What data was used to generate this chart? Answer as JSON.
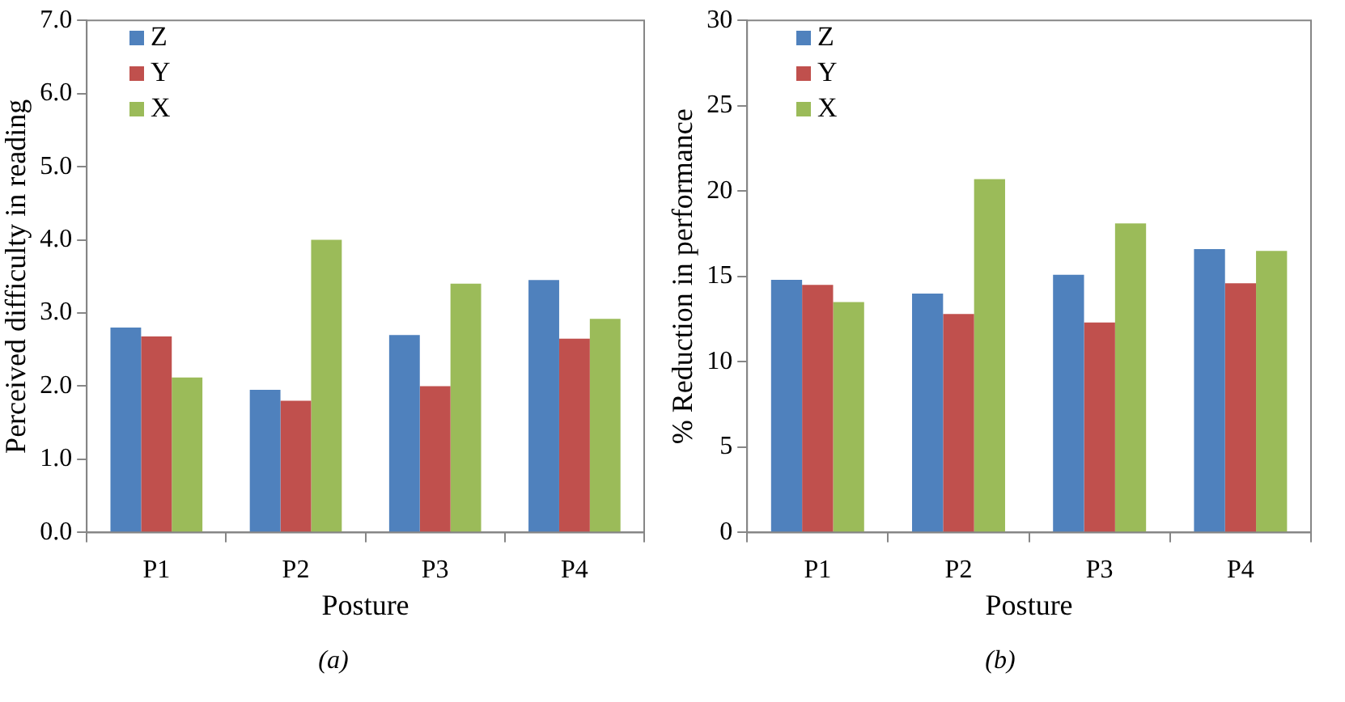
{
  "chart_data": [
    {
      "type": "bar",
      "xlabel": "Posture",
      "ylabel": "Perceived difficulty in reading",
      "categories": [
        "P1",
        "P2",
        "P3",
        "P4"
      ],
      "series": [
        {
          "name": "Z",
          "color": "#4f81bd",
          "values": [
            2.8,
            1.95,
            2.7,
            3.45
          ]
        },
        {
          "name": "Y",
          "color": "#c0504d",
          "values": [
            2.68,
            1.8,
            2.0,
            2.65
          ]
        },
        {
          "name": "X",
          "color": "#9bbb59",
          "values": [
            2.12,
            4.0,
            3.4,
            2.92
          ]
        }
      ],
      "ylim": [
        0,
        7
      ],
      "yticks": [
        {
          "value": 0,
          "label": "0.0"
        },
        {
          "value": 1,
          "label": "1.0"
        },
        {
          "value": 2,
          "label": "2.0"
        },
        {
          "value": 3,
          "label": "3.0"
        },
        {
          "value": 4,
          "label": "4.0"
        },
        {
          "value": 5,
          "label": "5.0"
        },
        {
          "value": 6,
          "label": "6.0"
        },
        {
          "value": 7,
          "label": "7.0"
        }
      ],
      "grid": false,
      "legend": "top left",
      "annotations": [
        "(a)"
      ]
    },
    {
      "type": "bar",
      "xlabel": "Posture",
      "ylabel": "% Reduction in performance",
      "categories": [
        "P1",
        "P2",
        "P3",
        "P4"
      ],
      "series": [
        {
          "name": "Z",
          "color": "#4f81bd",
          "values": [
            14.8,
            14.0,
            15.1,
            16.6
          ]
        },
        {
          "name": "Y",
          "color": "#c0504d",
          "values": [
            14.5,
            12.8,
            12.3,
            14.6
          ]
        },
        {
          "name": "X",
          "color": "#9bbb59",
          "values": [
            13.5,
            20.7,
            18.1,
            16.5
          ]
        }
      ],
      "ylim": [
        0,
        30
      ],
      "yticks": [
        0,
        5,
        10,
        15,
        20,
        25,
        30
      ],
      "grid": false,
      "legend": "top left",
      "annotations": [
        "(b)"
      ]
    }
  ]
}
